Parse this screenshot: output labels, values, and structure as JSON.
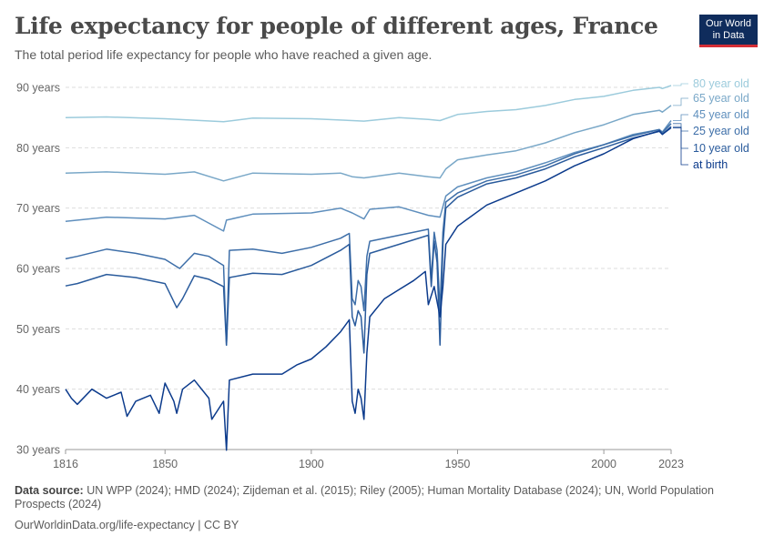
{
  "header": {
    "title": "Life expectancy for people of different ages, France",
    "subtitle": "The total period life expectancy for people who have reached a given age.",
    "logo_line1": "Our World",
    "logo_line2": "in Data"
  },
  "footer": {
    "source_label": "Data source:",
    "source_text": "UN WPP (2024); HMD (2024); Zijdeman et al. (2015); Riley (2005); Human Mortality Database (2024); UN, World Population Prospects (2024)",
    "link_text": "OurWorldinData.org/life-expectancy | CC BY"
  },
  "chart_data": {
    "type": "line",
    "title": "Life expectancy for people of different ages, France",
    "xlabel": "",
    "ylabel": "",
    "xlim": [
      1816,
      2023
    ],
    "ylim": [
      30,
      90
    ],
    "x_ticks": [
      1816,
      1850,
      1900,
      1950,
      2000,
      2023
    ],
    "y_ticks": [
      30,
      40,
      50,
      60,
      70,
      80,
      90
    ],
    "y_tick_suffix": " years",
    "grid": "horizontal dashed",
    "legend": "right, end-of-line labels",
    "series": [
      {
        "name": "80 year old",
        "color": "#9ccbdc",
        "points": [
          [
            1816,
            85
          ],
          [
            1830,
            85.1
          ],
          [
            1850,
            84.8
          ],
          [
            1870,
            84.3
          ],
          [
            1880,
            84.9
          ],
          [
            1900,
            84.8
          ],
          [
            1914,
            84.5
          ],
          [
            1918,
            84.4
          ],
          [
            1930,
            85
          ],
          [
            1940,
            84.7
          ],
          [
            1944,
            84.5
          ],
          [
            1950,
            85.5
          ],
          [
            1960,
            86
          ],
          [
            1970,
            86.3
          ],
          [
            1980,
            87
          ],
          [
            1990,
            88
          ],
          [
            2000,
            88.5
          ],
          [
            2010,
            89.5
          ],
          [
            2019,
            90
          ],
          [
            2020,
            89.8
          ],
          [
            2023,
            90.3
          ]
        ]
      },
      {
        "name": "65 year old",
        "color": "#7aa8c8",
        "points": [
          [
            1816,
            75.8
          ],
          [
            1830,
            76
          ],
          [
            1850,
            75.6
          ],
          [
            1860,
            76
          ],
          [
            1870,
            74.5
          ],
          [
            1880,
            75.8
          ],
          [
            1900,
            75.6
          ],
          [
            1910,
            75.8
          ],
          [
            1914,
            75.2
          ],
          [
            1918,
            75
          ],
          [
            1930,
            75.8
          ],
          [
            1940,
            75.2
          ],
          [
            1944,
            75
          ],
          [
            1946,
            76.5
          ],
          [
            1950,
            78
          ],
          [
            1960,
            78.8
          ],
          [
            1970,
            79.5
          ],
          [
            1980,
            80.8
          ],
          [
            1990,
            82.5
          ],
          [
            2000,
            83.8
          ],
          [
            2010,
            85.5
          ],
          [
            2019,
            86.2
          ],
          [
            2020,
            85.9
          ],
          [
            2023,
            87
          ]
        ]
      },
      {
        "name": "45 year old",
        "color": "#5f8fbd",
        "points": [
          [
            1816,
            67.8
          ],
          [
            1830,
            68.5
          ],
          [
            1850,
            68.2
          ],
          [
            1860,
            68.8
          ],
          [
            1870,
            66.2
          ],
          [
            1871,
            68
          ],
          [
            1880,
            69
          ],
          [
            1900,
            69.2
          ],
          [
            1910,
            70
          ],
          [
            1914,
            69.2
          ],
          [
            1918,
            68.2
          ],
          [
            1920,
            69.8
          ],
          [
            1930,
            70.2
          ],
          [
            1940,
            68.8
          ],
          [
            1944,
            68.5
          ],
          [
            1946,
            72
          ],
          [
            1950,
            73.5
          ],
          [
            1960,
            75
          ],
          [
            1970,
            76
          ],
          [
            1980,
            77.5
          ],
          [
            1990,
            79.2
          ],
          [
            2000,
            80.5
          ],
          [
            2010,
            82.2
          ],
          [
            2019,
            83
          ],
          [
            2020,
            82.6
          ],
          [
            2023,
            84.5
          ]
        ]
      },
      {
        "name": "25 year old",
        "color": "#3d6ea8",
        "points": [
          [
            1816,
            61.6
          ],
          [
            1820,
            62
          ],
          [
            1830,
            63.2
          ],
          [
            1840,
            62.5
          ],
          [
            1850,
            61.5
          ],
          [
            1855,
            60
          ],
          [
            1860,
            62.5
          ],
          [
            1865,
            62
          ],
          [
            1870,
            60.5
          ],
          [
            1871,
            47.3
          ],
          [
            1872,
            63
          ],
          [
            1880,
            63.2
          ],
          [
            1890,
            62.5
          ],
          [
            1900,
            63.5
          ],
          [
            1910,
            65
          ],
          [
            1913,
            65.8
          ],
          [
            1914,
            55
          ],
          [
            1915,
            54
          ],
          [
            1916,
            58
          ],
          [
            1917,
            57
          ],
          [
            1918,
            53
          ],
          [
            1919,
            62
          ],
          [
            1920,
            64.5
          ],
          [
            1930,
            65.5
          ],
          [
            1940,
            66.5
          ],
          [
            1941,
            58
          ],
          [
            1942,
            66
          ],
          [
            1943,
            63
          ],
          [
            1944,
            53
          ],
          [
            1945,
            66
          ],
          [
            1946,
            71
          ],
          [
            1950,
            72.5
          ],
          [
            1960,
            74.5
          ],
          [
            1970,
            75.5
          ],
          [
            1980,
            77
          ],
          [
            1990,
            79
          ],
          [
            2000,
            80.5
          ],
          [
            2010,
            82
          ],
          [
            2019,
            83
          ],
          [
            2020,
            82.5
          ],
          [
            2023,
            84
          ]
        ]
      },
      {
        "name": "10 year old",
        "color": "#2a5b9c",
        "points": [
          [
            1816,
            57.1
          ],
          [
            1820,
            57.5
          ],
          [
            1830,
            59
          ],
          [
            1840,
            58.5
          ],
          [
            1850,
            57.5
          ],
          [
            1854,
            53.5
          ],
          [
            1856,
            55
          ],
          [
            1860,
            58.8
          ],
          [
            1865,
            58.2
          ],
          [
            1870,
            57
          ],
          [
            1871,
            47.3
          ],
          [
            1872,
            58.5
          ],
          [
            1880,
            59.2
          ],
          [
            1890,
            59
          ],
          [
            1900,
            60.5
          ],
          [
            1910,
            63
          ],
          [
            1913,
            64
          ],
          [
            1914,
            52
          ],
          [
            1915,
            50.5
          ],
          [
            1916,
            53
          ],
          [
            1917,
            52
          ],
          [
            1918,
            46
          ],
          [
            1919,
            59
          ],
          [
            1920,
            62.5
          ],
          [
            1930,
            64
          ],
          [
            1940,
            65.5
          ],
          [
            1941,
            57
          ],
          [
            1942,
            64.5
          ],
          [
            1943,
            61
          ],
          [
            1944,
            47.3
          ],
          [
            1945,
            64
          ],
          [
            1946,
            70
          ],
          [
            1950,
            71.8
          ],
          [
            1960,
            74
          ],
          [
            1970,
            75
          ],
          [
            1980,
            76.5
          ],
          [
            1990,
            78.5
          ],
          [
            2000,
            80
          ],
          [
            2010,
            81.6
          ],
          [
            2019,
            82.7
          ],
          [
            2020,
            82.2
          ],
          [
            2023,
            83.5
          ]
        ]
      },
      {
        "name": "at birth",
        "color": "#0c3b8c",
        "points": [
          [
            1816,
            40
          ],
          [
            1818,
            38.5
          ],
          [
            1820,
            37.5
          ],
          [
            1825,
            40
          ],
          [
            1830,
            38.5
          ],
          [
            1835,
            39.5
          ],
          [
            1837,
            35.5
          ],
          [
            1840,
            38
          ],
          [
            1845,
            39
          ],
          [
            1848,
            36
          ],
          [
            1850,
            41
          ],
          [
            1853,
            38
          ],
          [
            1854,
            36
          ],
          [
            1856,
            40
          ],
          [
            1860,
            41.5
          ],
          [
            1865,
            38.5
          ],
          [
            1866,
            35
          ],
          [
            1870,
            38
          ],
          [
            1871,
            29.9
          ],
          [
            1872,
            41.5
          ],
          [
            1880,
            42.5
          ],
          [
            1890,
            42.5
          ],
          [
            1895,
            44
          ],
          [
            1900,
            45
          ],
          [
            1905,
            47
          ],
          [
            1910,
            49.5
          ],
          [
            1913,
            51.5
          ],
          [
            1914,
            38
          ],
          [
            1915,
            36
          ],
          [
            1916,
            40
          ],
          [
            1917,
            38.5
          ],
          [
            1918,
            35
          ],
          [
            1919,
            46
          ],
          [
            1920,
            52
          ],
          [
            1925,
            55
          ],
          [
            1930,
            56.5
          ],
          [
            1935,
            58
          ],
          [
            1939,
            59.5
          ],
          [
            1940,
            54
          ],
          [
            1942,
            57
          ],
          [
            1944,
            52
          ],
          [
            1945,
            57
          ],
          [
            1946,
            64
          ],
          [
            1950,
            67
          ],
          [
            1960,
            70.5
          ],
          [
            1970,
            72.5
          ],
          [
            1980,
            74.5
          ],
          [
            1990,
            77
          ],
          [
            2000,
            79
          ],
          [
            2010,
            81.5
          ],
          [
            2019,
            82.8
          ],
          [
            2020,
            82.2
          ],
          [
            2023,
            83.3
          ]
        ]
      }
    ]
  }
}
